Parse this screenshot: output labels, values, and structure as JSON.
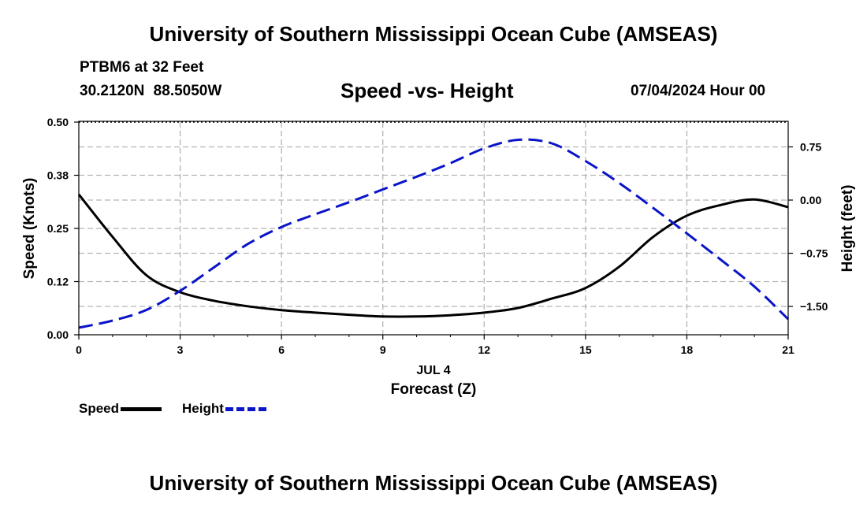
{
  "header": {
    "title": "University of Southern Mississippi Ocean Cube (AMSEAS)",
    "station": "PTBM6 at 32 Feet",
    "coordinates": "30.2120N  88.5050W",
    "subtitle": "Speed -vs- Height",
    "date": "07/04/2024 Hour 00"
  },
  "footer": {
    "title": "University of Southern Mississippi Ocean Cube (AMSEAS)"
  },
  "colors": {
    "speed": "#000000",
    "height": "#0a14c8",
    "grid": "#b4b4b4"
  },
  "chart_data": {
    "type": "line",
    "title": "Speed -vs- Height",
    "xlabel_date": "JUL 4",
    "xlabel": "Forecast (Z)",
    "ylabel": "Speed (Knots)",
    "y2label": "Height (feet)",
    "xlim": [
      0,
      21
    ],
    "ylim": [
      0,
      0.5
    ],
    "y2lim": [
      -1.9,
      1.1
    ],
    "x_ticks": [
      0,
      3,
      6,
      9,
      12,
      15,
      18,
      21
    ],
    "x_tick_labels": [
      "0",
      "3",
      "6",
      "9",
      "12",
      "15",
      "18",
      "21"
    ],
    "y_ticks": [
      0,
      0.125,
      0.25,
      0.375,
      0.5
    ],
    "y_tick_labels": [
      "0.00",
      "0.12",
      "0.25",
      "0.38",
      "0.50"
    ],
    "y2_ticks": [
      0.75,
      0,
      -0.75,
      -1.5
    ],
    "y2_tick_labels": [
      "0.75",
      "0.00",
      "−0.75",
      "−1.50"
    ],
    "grid": true,
    "series": [
      {
        "name": "Speed",
        "axis": "left",
        "style": "solid",
        "x": [
          0,
          1,
          2,
          3,
          4,
          5,
          6,
          7,
          8,
          9,
          10,
          11,
          12,
          13,
          14,
          15,
          16,
          17,
          18,
          19,
          20,
          21
        ],
        "values": [
          0.33,
          0.23,
          0.14,
          0.1,
          0.08,
          0.067,
          0.058,
          0.052,
          0.047,
          0.043,
          0.043,
          0.046,
          0.052,
          0.063,
          0.085,
          0.11,
          0.16,
          0.23,
          0.28,
          0.305,
          0.318,
          0.3
        ]
      },
      {
        "name": "Height",
        "axis": "right",
        "style": "dashed",
        "x": [
          0,
          1,
          2,
          3,
          4,
          5,
          6,
          7,
          8,
          9,
          10,
          11,
          12,
          13,
          14,
          15,
          16,
          17,
          18,
          19,
          20,
          21
        ],
        "values": [
          -1.8,
          -1.7,
          -1.55,
          -1.28,
          -0.95,
          -0.62,
          -0.38,
          -0.2,
          -0.03,
          0.15,
          0.33,
          0.52,
          0.73,
          0.85,
          0.8,
          0.55,
          0.24,
          -0.11,
          -0.47,
          -0.84,
          -1.22,
          -1.68
        ]
      }
    ]
  },
  "legend": {
    "speed_label": "Speed",
    "height_label": "Height"
  }
}
